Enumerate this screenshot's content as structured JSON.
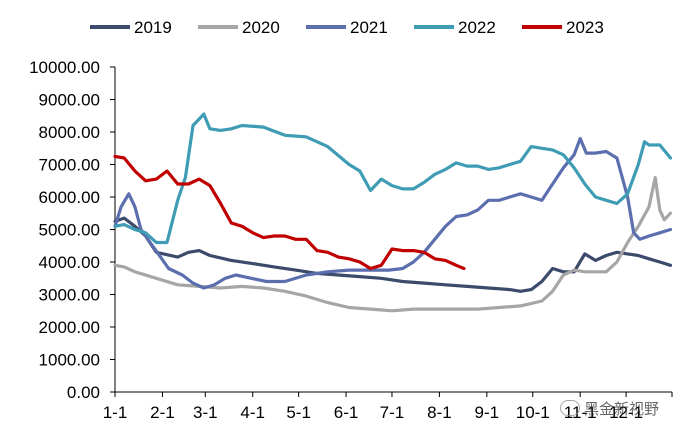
{
  "chart_data": {
    "type": "line",
    "title": "",
    "xlabel": "",
    "ylabel": "",
    "ylim": [
      0,
      10000
    ],
    "y_ticks": [
      "0.00",
      "1000.00",
      "2000.00",
      "3000.00",
      "4000.00",
      "5000.00",
      "6000.00",
      "7000.00",
      "8000.00",
      "9000.00",
      "10000.00"
    ],
    "x_ticks": [
      "1-1",
      "2-1",
      "3-1",
      "4-1",
      "5-1",
      "6-1",
      "7-1",
      "8-1",
      "9-1",
      "10-1",
      "11-1",
      "12-1"
    ],
    "grid": false,
    "legend_position": "top",
    "series": [
      {
        "name": "2019",
        "color": "#3c4a6b",
        "points": [
          [
            1,
            5250
          ],
          [
            7,
            5350
          ],
          [
            14,
            5100
          ],
          [
            21,
            4800
          ],
          [
            28,
            4300
          ],
          [
            42,
            4150
          ],
          [
            49,
            4300
          ],
          [
            56,
            4350
          ],
          [
            63,
            4200
          ],
          [
            77,
            4050
          ],
          [
            91,
            3950
          ],
          [
            105,
            3850
          ],
          [
            119,
            3750
          ],
          [
            133,
            3650
          ],
          [
            147,
            3600
          ],
          [
            161,
            3550
          ],
          [
            175,
            3500
          ],
          [
            189,
            3400
          ],
          [
            203,
            3350
          ],
          [
            217,
            3300
          ],
          [
            231,
            3250
          ],
          [
            245,
            3200
          ],
          [
            259,
            3150
          ],
          [
            266,
            3100
          ],
          [
            273,
            3150
          ],
          [
            280,
            3400
          ],
          [
            287,
            3800
          ],
          [
            294,
            3700
          ],
          [
            301,
            3700
          ],
          [
            308,
            4250
          ],
          [
            315,
            4050
          ],
          [
            322,
            4200
          ],
          [
            329,
            4300
          ],
          [
            336,
            4250
          ],
          [
            343,
            4200
          ],
          [
            350,
            4100
          ],
          [
            357,
            4000
          ],
          [
            364,
            3900
          ]
        ]
      },
      {
        "name": "2020",
        "color": "#a6a6a6",
        "points": [
          [
            1,
            3900
          ],
          [
            7,
            3850
          ],
          [
            14,
            3700
          ],
          [
            28,
            3500
          ],
          [
            42,
            3300
          ],
          [
            56,
            3250
          ],
          [
            70,
            3200
          ],
          [
            84,
            3250
          ],
          [
            98,
            3200
          ],
          [
            112,
            3100
          ],
          [
            126,
            2950
          ],
          [
            140,
            2750
          ],
          [
            154,
            2600
          ],
          [
            168,
            2550
          ],
          [
            182,
            2500
          ],
          [
            196,
            2550
          ],
          [
            210,
            2550
          ],
          [
            224,
            2550
          ],
          [
            238,
            2550
          ],
          [
            252,
            2600
          ],
          [
            266,
            2650
          ],
          [
            280,
            2800
          ],
          [
            287,
            3100
          ],
          [
            294,
            3600
          ],
          [
            301,
            3750
          ],
          [
            308,
            3700
          ],
          [
            315,
            3700
          ],
          [
            322,
            3700
          ],
          [
            329,
            4000
          ],
          [
            336,
            4600
          ],
          [
            343,
            5100
          ],
          [
            350,
            5700
          ],
          [
            354,
            6600
          ],
          [
            357,
            5600
          ],
          [
            360,
            5300
          ],
          [
            364,
            5500
          ]
        ]
      },
      {
        "name": "2021",
        "color": "#5b6fae",
        "points": [
          [
            1,
            5100
          ],
          [
            5,
            5700
          ],
          [
            10,
            6100
          ],
          [
            14,
            5700
          ],
          [
            18,
            5000
          ],
          [
            24,
            4600
          ],
          [
            30,
            4200
          ],
          [
            36,
            3800
          ],
          [
            45,
            3600
          ],
          [
            52,
            3350
          ],
          [
            59,
            3200
          ],
          [
            66,
            3300
          ],
          [
            73,
            3500
          ],
          [
            80,
            3600
          ],
          [
            90,
            3500
          ],
          [
            100,
            3400
          ],
          [
            112,
            3400
          ],
          [
            126,
            3600
          ],
          [
            140,
            3700
          ],
          [
            154,
            3750
          ],
          [
            168,
            3750
          ],
          [
            180,
            3750
          ],
          [
            189,
            3800
          ],
          [
            196,
            4000
          ],
          [
            203,
            4300
          ],
          [
            210,
            4700
          ],
          [
            217,
            5100
          ],
          [
            224,
            5400
          ],
          [
            231,
            5450
          ],
          [
            238,
            5600
          ],
          [
            245,
            5900
          ],
          [
            252,
            5900
          ],
          [
            259,
            6000
          ],
          [
            266,
            6100
          ],
          [
            273,
            6000
          ],
          [
            280,
            5900
          ],
          [
            287,
            6400
          ],
          [
            294,
            6900
          ],
          [
            301,
            7300
          ],
          [
            305,
            7800
          ],
          [
            309,
            7350
          ],
          [
            315,
            7350
          ],
          [
            322,
            7400
          ],
          [
            329,
            7200
          ],
          [
            336,
            6000
          ],
          [
            340,
            4900
          ],
          [
            344,
            4700
          ],
          [
            350,
            4800
          ],
          [
            357,
            4900
          ],
          [
            364,
            5000
          ]
        ]
      },
      {
        "name": "2022",
        "color": "#3f9cb5",
        "points": [
          [
            1,
            5100
          ],
          [
            7,
            5150
          ],
          [
            14,
            5000
          ],
          [
            21,
            4900
          ],
          [
            28,
            4600
          ],
          [
            35,
            4600
          ],
          [
            42,
            5900
          ],
          [
            47,
            6600
          ],
          [
            52,
            8200
          ],
          [
            56,
            8400
          ],
          [
            59,
            8550
          ],
          [
            63,
            8100
          ],
          [
            70,
            8050
          ],
          [
            77,
            8100
          ],
          [
            84,
            8200
          ],
          [
            98,
            8150
          ],
          [
            112,
            7900
          ],
          [
            126,
            7850
          ],
          [
            140,
            7550
          ],
          [
            154,
            7000
          ],
          [
            161,
            6800
          ],
          [
            168,
            6200
          ],
          [
            175,
            6550
          ],
          [
            182,
            6350
          ],
          [
            189,
            6250
          ],
          [
            196,
            6250
          ],
          [
            203,
            6450
          ],
          [
            210,
            6700
          ],
          [
            217,
            6850
          ],
          [
            224,
            7050
          ],
          [
            231,
            6950
          ],
          [
            238,
            6950
          ],
          [
            245,
            6850
          ],
          [
            252,
            6900
          ],
          [
            259,
            7000
          ],
          [
            266,
            7100
          ],
          [
            273,
            7550
          ],
          [
            280,
            7500
          ],
          [
            287,
            7450
          ],
          [
            294,
            7300
          ],
          [
            301,
            6900
          ],
          [
            308,
            6400
          ],
          [
            315,
            6000
          ],
          [
            322,
            5900
          ],
          [
            329,
            5800
          ],
          [
            336,
            6100
          ],
          [
            343,
            7000
          ],
          [
            347,
            7700
          ],
          [
            350,
            7600
          ],
          [
            357,
            7600
          ],
          [
            364,
            7200
          ]
        ]
      },
      {
        "name": "2023",
        "color": "#c00000",
        "points": [
          [
            1,
            7250
          ],
          [
            7,
            7200
          ],
          [
            14,
            6800
          ],
          [
            21,
            6500
          ],
          [
            28,
            6550
          ],
          [
            35,
            6800
          ],
          [
            42,
            6400
          ],
          [
            49,
            6400
          ],
          [
            56,
            6550
          ],
          [
            63,
            6350
          ],
          [
            70,
            5800
          ],
          [
            77,
            5200
          ],
          [
            84,
            5100
          ],
          [
            91,
            4900
          ],
          [
            98,
            4750
          ],
          [
            105,
            4800
          ],
          [
            112,
            4800
          ],
          [
            119,
            4700
          ],
          [
            126,
            4700
          ],
          [
            133,
            4350
          ],
          [
            140,
            4300
          ],
          [
            147,
            4150
          ],
          [
            154,
            4100
          ],
          [
            161,
            4000
          ],
          [
            168,
            3800
          ],
          [
            175,
            3900
          ],
          [
            182,
            4400
          ],
          [
            189,
            4350
          ],
          [
            196,
            4350
          ],
          [
            203,
            4300
          ],
          [
            210,
            4100
          ],
          [
            217,
            4050
          ],
          [
            224,
            3900
          ],
          [
            229,
            3800
          ]
        ]
      }
    ]
  },
  "watermark_text": "黑金新视野"
}
